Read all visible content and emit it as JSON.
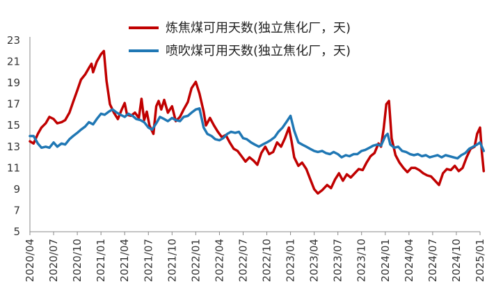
{
  "chart_data": {
    "type": "line",
    "title": "",
    "xlabel": "",
    "ylabel": "",
    "ylim": [
      5,
      23
    ],
    "xlim": [
      "2020-04",
      "2025-01"
    ],
    "y_ticks": [
      5,
      7,
      9,
      11,
      13,
      15,
      17,
      19,
      21,
      23
    ],
    "x_ticks": [
      "2020/04",
      "2020/07",
      "2020/10",
      "2021/01",
      "2021/04",
      "2021/07",
      "2021/10",
      "2022/01",
      "2022/04",
      "2022/07",
      "2022/10",
      "2023/01",
      "2023/04",
      "2023/07",
      "2023/10",
      "2024/01",
      "2024/04",
      "2024/07",
      "2024/10",
      "2025/01"
    ],
    "grid": false,
    "legend_position": "top",
    "series": [
      {
        "name": "炼焦煤可用天数(独立焦化厂，天)",
        "color": "#C00000",
        "points": [
          [
            "2020-04-01",
            13.5
          ],
          [
            "2020-04-15",
            13.3
          ],
          [
            "2020-05-01",
            14.2
          ],
          [
            "2020-05-15",
            14.8
          ],
          [
            "2020-06-01",
            15.2
          ],
          [
            "2020-06-15",
            15.8
          ],
          [
            "2020-07-01",
            15.6
          ],
          [
            "2020-07-15",
            15.2
          ],
          [
            "2020-08-01",
            15.3
          ],
          [
            "2020-08-15",
            15.5
          ],
          [
            "2020-09-01",
            16.2
          ],
          [
            "2020-09-15",
            17.2
          ],
          [
            "2020-10-01",
            18.3
          ],
          [
            "2020-10-15",
            19.3
          ],
          [
            "2020-11-01",
            19.8
          ],
          [
            "2020-11-15",
            20.4
          ],
          [
            "2020-11-25",
            20.8
          ],
          [
            "2020-12-01",
            20.0
          ],
          [
            "2020-12-15",
            21.0
          ],
          [
            "2021-01-01",
            21.7
          ],
          [
            "2021-01-12",
            22.0
          ],
          [
            "2021-01-22",
            19.2
          ],
          [
            "2021-02-05",
            17.0
          ],
          [
            "2021-02-20",
            16.2
          ],
          [
            "2021-03-05",
            15.6
          ],
          [
            "2021-03-20",
            16.5
          ],
          [
            "2021-04-01",
            17.1
          ],
          [
            "2021-04-10",
            16.0
          ],
          [
            "2021-04-25",
            15.9
          ],
          [
            "2021-05-10",
            16.2
          ],
          [
            "2021-05-25",
            15.7
          ],
          [
            "2021-06-05",
            17.5
          ],
          [
            "2021-06-15",
            15.5
          ],
          [
            "2021-06-25",
            16.3
          ],
          [
            "2021-07-05",
            15.0
          ],
          [
            "2021-07-20",
            14.2
          ],
          [
            "2021-08-01",
            16.8
          ],
          [
            "2021-08-10",
            17.3
          ],
          [
            "2021-08-20",
            16.5
          ],
          [
            "2021-09-01",
            17.4
          ],
          [
            "2021-09-15",
            16.2
          ],
          [
            "2021-10-01",
            16.8
          ],
          [
            "2021-10-15",
            15.4
          ],
          [
            "2021-11-01",
            15.8
          ],
          [
            "2021-11-15",
            16.5
          ],
          [
            "2021-12-01",
            17.2
          ],
          [
            "2021-12-15",
            18.5
          ],
          [
            "2022-01-01",
            19.1
          ],
          [
            "2022-01-15",
            18.0
          ],
          [
            "2022-02-01",
            16.3
          ],
          [
            "2022-02-10",
            15.0
          ],
          [
            "2022-02-25",
            15.7
          ],
          [
            "2022-03-10",
            15.0
          ],
          [
            "2022-03-25",
            14.4
          ],
          [
            "2022-04-10",
            13.9
          ],
          [
            "2022-04-25",
            14.1
          ],
          [
            "2022-05-10",
            13.4
          ],
          [
            "2022-05-25",
            12.8
          ],
          [
            "2022-06-10",
            12.6
          ],
          [
            "2022-06-25",
            12.1
          ],
          [
            "2022-07-10",
            11.6
          ],
          [
            "2022-07-25",
            12.0
          ],
          [
            "2022-08-10",
            11.7
          ],
          [
            "2022-08-25",
            11.3
          ],
          [
            "2022-09-10",
            12.4
          ],
          [
            "2022-09-25",
            13.0
          ],
          [
            "2022-10-10",
            12.3
          ],
          [
            "2022-10-25",
            12.5
          ],
          [
            "2022-11-10",
            13.4
          ],
          [
            "2022-11-25",
            13.0
          ],
          [
            "2022-12-10",
            13.8
          ],
          [
            "2022-12-25",
            14.8
          ],
          [
            "2023-01-05",
            13.5
          ],
          [
            "2023-01-15",
            12.0
          ],
          [
            "2023-02-01",
            11.2
          ],
          [
            "2023-02-15",
            11.5
          ],
          [
            "2023-03-01",
            10.9
          ],
          [
            "2023-03-15",
            10.0
          ],
          [
            "2023-04-01",
            9.0
          ],
          [
            "2023-04-15",
            8.6
          ],
          [
            "2023-05-01",
            8.9
          ],
          [
            "2023-05-20",
            9.4
          ],
          [
            "2023-06-05",
            9.1
          ],
          [
            "2023-06-20",
            9.9
          ],
          [
            "2023-07-05",
            10.5
          ],
          [
            "2023-07-20",
            9.8
          ],
          [
            "2023-08-05",
            10.4
          ],
          [
            "2023-08-20",
            10.1
          ],
          [
            "2023-09-05",
            10.5
          ],
          [
            "2023-09-20",
            10.9
          ],
          [
            "2023-10-05",
            10.8
          ],
          [
            "2023-10-20",
            11.5
          ],
          [
            "2023-11-05",
            12.1
          ],
          [
            "2023-11-20",
            12.4
          ],
          [
            "2023-12-05",
            13.3
          ],
          [
            "2023-12-15",
            13.0
          ],
          [
            "2023-12-25",
            14.7
          ],
          [
            "2024-01-05",
            17.0
          ],
          [
            "2024-01-15",
            17.3
          ],
          [
            "2024-01-25",
            13.8
          ],
          [
            "2024-02-10",
            12.2
          ],
          [
            "2024-02-25",
            11.5
          ],
          [
            "2024-03-10",
            11.0
          ],
          [
            "2024-03-25",
            10.6
          ],
          [
            "2024-04-10",
            11.0
          ],
          [
            "2024-04-25",
            11.0
          ],
          [
            "2024-05-10",
            10.8
          ],
          [
            "2024-05-25",
            10.5
          ],
          [
            "2024-06-10",
            10.3
          ],
          [
            "2024-06-25",
            10.2
          ],
          [
            "2024-07-10",
            9.8
          ],
          [
            "2024-07-25",
            9.4
          ],
          [
            "2024-08-10",
            10.5
          ],
          [
            "2024-08-25",
            10.9
          ],
          [
            "2024-09-10",
            10.8
          ],
          [
            "2024-09-25",
            11.2
          ],
          [
            "2024-10-10",
            10.7
          ],
          [
            "2024-10-25",
            11.0
          ],
          [
            "2024-11-10",
            12.0
          ],
          [
            "2024-11-25",
            12.8
          ],
          [
            "2024-12-10",
            13.0
          ],
          [
            "2024-12-20",
            14.2
          ],
          [
            "2025-01-01",
            14.8
          ],
          [
            "2025-01-08",
            12.5
          ],
          [
            "2025-01-15",
            10.7
          ]
        ]
      },
      {
        "name": "喷吹煤可用天数(独立焦化厂，天)",
        "color": "#1F77B4",
        "points": [
          [
            "2020-04-01",
            14.0
          ],
          [
            "2020-04-15",
            14.0
          ],
          [
            "2020-05-01",
            13.3
          ],
          [
            "2020-05-15",
            12.9
          ],
          [
            "2020-06-01",
            13.0
          ],
          [
            "2020-06-15",
            12.9
          ],
          [
            "2020-07-01",
            13.4
          ],
          [
            "2020-07-15",
            13.0
          ],
          [
            "2020-08-01",
            13.3
          ],
          [
            "2020-08-15",
            13.2
          ],
          [
            "2020-09-01",
            13.7
          ],
          [
            "2020-09-15",
            14.0
          ],
          [
            "2020-10-01",
            14.3
          ],
          [
            "2020-10-15",
            14.6
          ],
          [
            "2020-11-01",
            14.9
          ],
          [
            "2020-11-15",
            15.3
          ],
          [
            "2020-12-01",
            15.1
          ],
          [
            "2020-12-15",
            15.6
          ],
          [
            "2021-01-01",
            16.1
          ],
          [
            "2021-01-15",
            16.0
          ],
          [
            "2021-02-01",
            16.3
          ],
          [
            "2021-02-15",
            16.5
          ],
          [
            "2021-03-01",
            16.2
          ],
          [
            "2021-03-15",
            16.0
          ],
          [
            "2021-04-01",
            15.8
          ],
          [
            "2021-04-15",
            16.1
          ],
          [
            "2021-05-01",
            15.9
          ],
          [
            "2021-05-15",
            15.6
          ],
          [
            "2021-06-01",
            15.5
          ],
          [
            "2021-06-15",
            15.3
          ],
          [
            "2021-07-01",
            14.8
          ],
          [
            "2021-07-15",
            14.6
          ],
          [
            "2021-08-01",
            15.2
          ],
          [
            "2021-08-15",
            15.8
          ],
          [
            "2021-09-01",
            15.6
          ],
          [
            "2021-09-15",
            15.4
          ],
          [
            "2021-10-01",
            15.7
          ],
          [
            "2021-10-15",
            15.5
          ],
          [
            "2021-11-01",
            15.4
          ],
          [
            "2021-11-15",
            15.8
          ],
          [
            "2021-12-01",
            15.9
          ],
          [
            "2021-12-15",
            16.2
          ],
          [
            "2022-01-01",
            16.5
          ],
          [
            "2022-01-15",
            16.6
          ],
          [
            "2022-02-01",
            14.8
          ],
          [
            "2022-02-15",
            14.2
          ],
          [
            "2022-03-01",
            14.0
          ],
          [
            "2022-03-15",
            13.7
          ],
          [
            "2022-04-01",
            13.6
          ],
          [
            "2022-04-15",
            13.8
          ],
          [
            "2022-05-01",
            14.2
          ],
          [
            "2022-05-15",
            14.4
          ],
          [
            "2022-06-01",
            14.3
          ],
          [
            "2022-06-15",
            14.4
          ],
          [
            "2022-07-01",
            13.8
          ],
          [
            "2022-07-15",
            13.7
          ],
          [
            "2022-08-01",
            13.4
          ],
          [
            "2022-08-15",
            13.2
          ],
          [
            "2022-09-01",
            13.0
          ],
          [
            "2022-09-15",
            13.2
          ],
          [
            "2022-10-01",
            13.4
          ],
          [
            "2022-10-15",
            13.6
          ],
          [
            "2022-11-01",
            13.9
          ],
          [
            "2022-11-15",
            14.4
          ],
          [
            "2022-12-01",
            14.8
          ],
          [
            "2022-12-15",
            15.3
          ],
          [
            "2023-01-01",
            15.9
          ],
          [
            "2023-01-15",
            14.5
          ],
          [
            "2023-02-01",
            13.4
          ],
          [
            "2023-02-15",
            13.2
          ],
          [
            "2023-03-01",
            13.0
          ],
          [
            "2023-03-15",
            12.8
          ],
          [
            "2023-04-01",
            12.6
          ],
          [
            "2023-04-15",
            12.5
          ],
          [
            "2023-05-01",
            12.6
          ],
          [
            "2023-05-15",
            12.4
          ],
          [
            "2023-06-01",
            12.3
          ],
          [
            "2023-06-15",
            12.5
          ],
          [
            "2023-07-01",
            12.3
          ],
          [
            "2023-07-15",
            12.0
          ],
          [
            "2023-08-01",
            12.2
          ],
          [
            "2023-08-15",
            12.1
          ],
          [
            "2023-09-01",
            12.3
          ],
          [
            "2023-09-15",
            12.3
          ],
          [
            "2023-10-01",
            12.6
          ],
          [
            "2023-10-15",
            12.7
          ],
          [
            "2023-11-01",
            12.9
          ],
          [
            "2023-11-15",
            13.1
          ],
          [
            "2023-12-01",
            13.2
          ],
          [
            "2023-12-15",
            13.1
          ],
          [
            "2024-01-01",
            14.0
          ],
          [
            "2024-01-10",
            14.2
          ],
          [
            "2024-01-20",
            13.2
          ],
          [
            "2024-02-05",
            12.9
          ],
          [
            "2024-02-20",
            13.0
          ],
          [
            "2024-03-05",
            12.6
          ],
          [
            "2024-03-20",
            12.5
          ],
          [
            "2024-04-05",
            12.3
          ],
          [
            "2024-04-20",
            12.2
          ],
          [
            "2024-05-05",
            12.3
          ],
          [
            "2024-05-20",
            12.1
          ],
          [
            "2024-06-05",
            12.2
          ],
          [
            "2024-06-20",
            12.0
          ],
          [
            "2024-07-05",
            12.1
          ],
          [
            "2024-07-20",
            12.2
          ],
          [
            "2024-08-05",
            12.0
          ],
          [
            "2024-08-20",
            12.2
          ],
          [
            "2024-09-05",
            12.1
          ],
          [
            "2024-09-20",
            12.0
          ],
          [
            "2024-10-05",
            11.9
          ],
          [
            "2024-10-20",
            12.2
          ],
          [
            "2024-11-05",
            12.4
          ],
          [
            "2024-11-20",
            12.8
          ],
          [
            "2024-12-05",
            13.0
          ],
          [
            "2024-12-20",
            13.2
          ],
          [
            "2025-01-01",
            13.4
          ],
          [
            "2025-01-15",
            12.6
          ]
        ]
      }
    ]
  }
}
